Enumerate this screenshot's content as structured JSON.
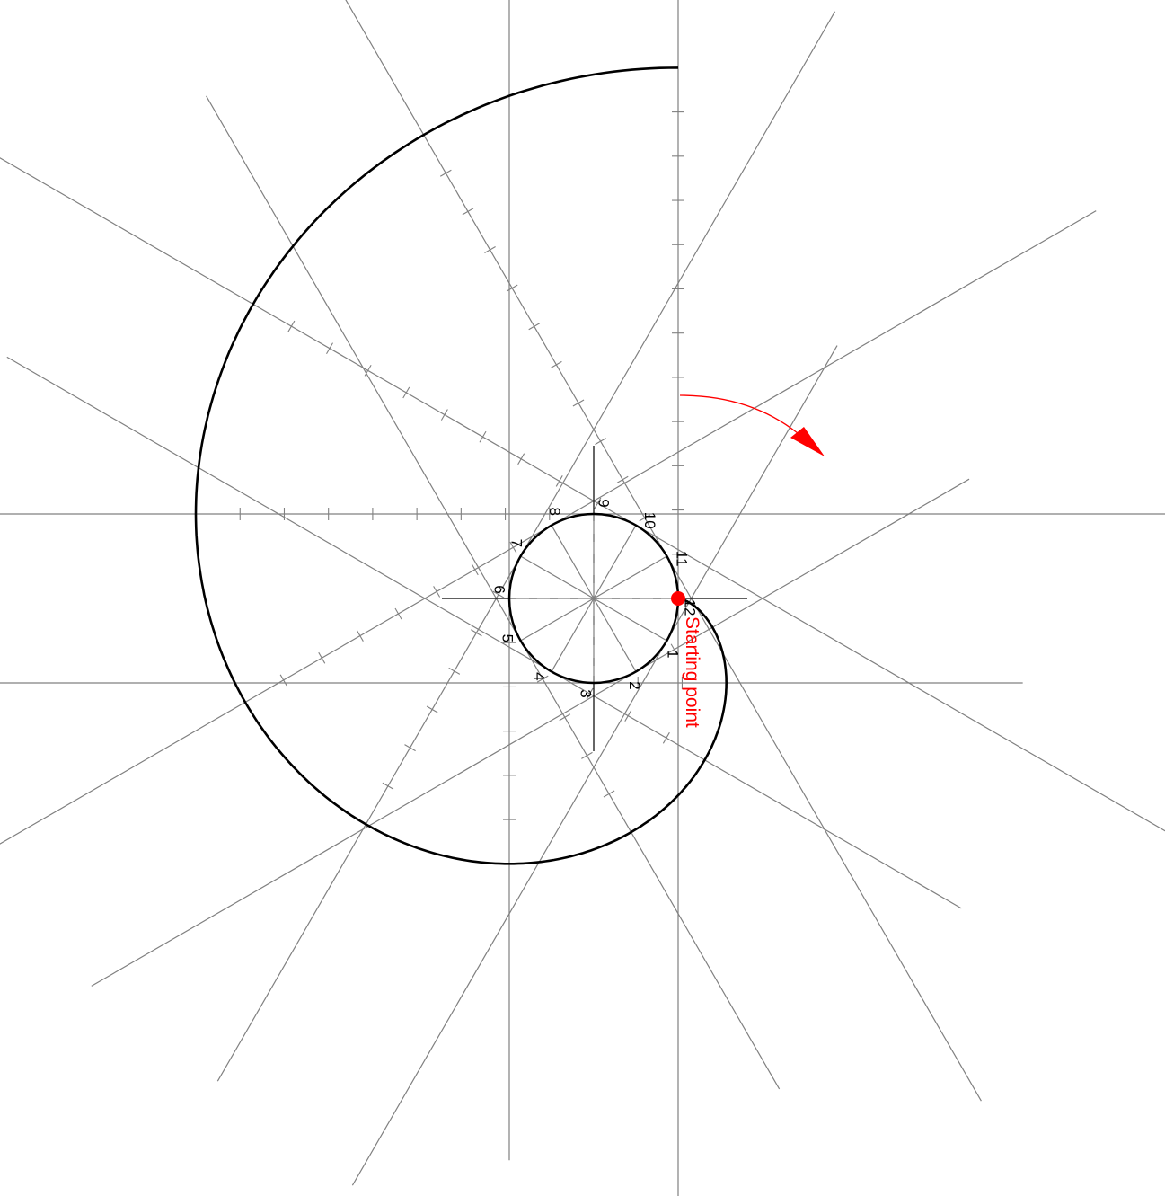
{
  "diagram": {
    "division_labels": [
      "1",
      "2",
      "3",
      "4",
      "5",
      "6",
      "7",
      "8",
      "9",
      "10",
      "11",
      "12"
    ],
    "start_label": "Starting point",
    "colors": {
      "curve": "#000000",
      "construction": "#808080",
      "accent": "#ff0000"
    },
    "icons": {
      "rotation_direction": "curved-arrow-icon",
      "start_marker": "red-dot-icon"
    }
  }
}
